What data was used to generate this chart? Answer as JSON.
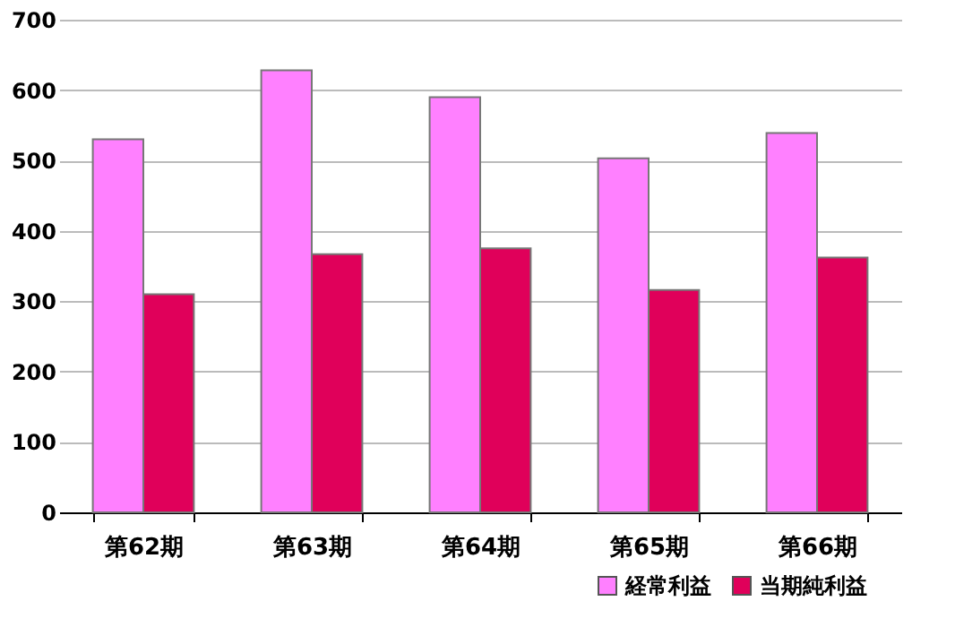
{
  "chart_data": {
    "type": "bar",
    "categories": [
      "第62期",
      "第63期",
      "第64期",
      "第65期",
      "第66期"
    ],
    "series": [
      {
        "name": "経常利益",
        "color": "#ff80ff",
        "values": [
          530,
          628,
          590,
          503,
          539
        ]
      },
      {
        "name": "当期純利益",
        "color": "#e0005a",
        "values": [
          310,
          367,
          375,
          316,
          362
        ]
      }
    ],
    "ylim": [
      0,
      700
    ],
    "yticks": [
      0,
      100,
      200,
      300,
      400,
      500,
      600,
      700
    ],
    "grid": "y",
    "legend": "bottom right"
  }
}
